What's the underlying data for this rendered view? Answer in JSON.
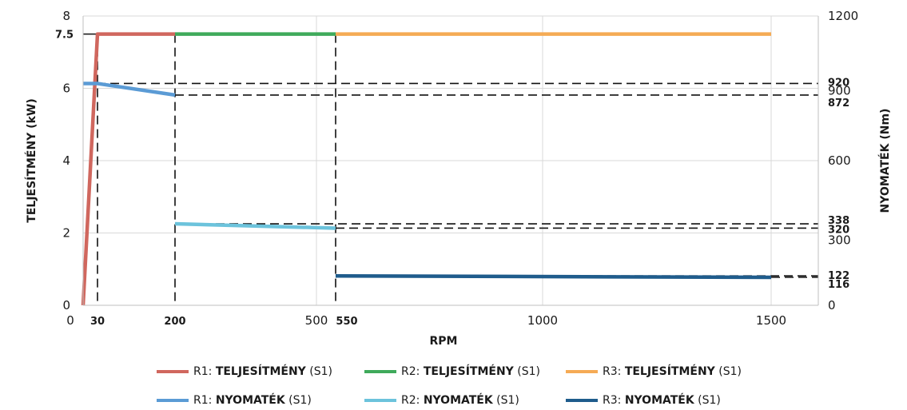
{
  "chart_data": {
    "type": "line",
    "xlabel": "RPM",
    "ylabel_left": "TELJESÍTMÉNY (kW)",
    "ylabel_right": "NYOMATÉK (Nm)",
    "x_ticks": [
      {
        "value": 0,
        "label": "0",
        "bold": false
      },
      {
        "value": 30,
        "label": "30",
        "bold": true
      },
      {
        "value": 200,
        "label": "200",
        "bold": true
      },
      {
        "value": 500,
        "label": "500",
        "bold": false
      },
      {
        "value": 550,
        "label": "550",
        "bold": true
      },
      {
        "value": 1000,
        "label": "1000",
        "bold": false
      },
      {
        "value": 1500,
        "label": "1500",
        "bold": false
      }
    ],
    "left_ticks": [
      {
        "value": 0,
        "label": "0",
        "bold": false
      },
      {
        "value": 2,
        "label": "2",
        "bold": false
      },
      {
        "value": 4,
        "label": "4",
        "bold": false
      },
      {
        "value": 6,
        "label": "6",
        "bold": false
      },
      {
        "value": 7.5,
        "label": "7.5",
        "bold": true
      },
      {
        "value": 8,
        "label": "8",
        "bold": false
      }
    ],
    "right_ticks": [
      {
        "value": 0,
        "label": "0",
        "bold": false
      },
      {
        "value": 116,
        "label": "116",
        "bold": true
      },
      {
        "value": 122,
        "label": "122",
        "bold": true
      },
      {
        "value": 300,
        "label": "300",
        "bold": false
      },
      {
        "value": 320,
        "label": "320",
        "bold": true
      },
      {
        "value": 338,
        "label": "338",
        "bold": true
      },
      {
        "value": 600,
        "label": "600",
        "bold": false
      },
      {
        "value": 872,
        "label": "872",
        "bold": true
      },
      {
        "value": 900,
        "label": "900",
        "bold": false
      },
      {
        "value": 920,
        "label": "920",
        "bold": true
      },
      {
        "value": 1200,
        "label": "1200",
        "bold": false
      }
    ],
    "series": [
      {
        "name": "R1: TELJESÍTMÉNY (S1)",
        "prefix": "R1: ",
        "bold": "TELJESÍTMÉNY",
        "suffix": " (S1)",
        "axis": "left",
        "color": "#D0675E",
        "x": [
          0,
          30,
          200
        ],
        "y": [
          0,
          7.5,
          7.5
        ]
      },
      {
        "name": "R2: TELJESÍTMÉNY (S1)",
        "prefix": "R2: ",
        "bold": "TELJESÍTMÉNY",
        "suffix": " (S1)",
        "axis": "left",
        "color": "#3FAA5B",
        "x": [
          200,
          550
        ],
        "y": [
          7.5,
          7.5
        ]
      },
      {
        "name": "R3: TELJESÍTMÉNY (S1)",
        "prefix": "R3: ",
        "bold": "TELJESÍTMÉNY",
        "suffix": " (S1)",
        "axis": "left",
        "color": "#F5AB55",
        "x": [
          550,
          1500
        ],
        "y": [
          7.5,
          7.5
        ]
      },
      {
        "name": "R1: NYOMATÉK (S1)",
        "prefix": "R1: ",
        "bold": "NYOMATÉK",
        "suffix": " (S1)",
        "axis": "right",
        "color": "#5B9BD5",
        "x": [
          0,
          30,
          200
        ],
        "y": [
          920,
          920,
          872
        ]
      },
      {
        "name": "R2: NYOMATÉK (S1)",
        "prefix": "R2: ",
        "bold": "NYOMATÉK",
        "suffix": " (S1)",
        "axis": "right",
        "color": "#6CC3DC",
        "x": [
          200,
          550
        ],
        "y": [
          338,
          320
        ]
      },
      {
        "name": "R3: NYOMATÉK (S1)",
        "prefix": "R3: ",
        "bold": "NYOMATÉK",
        "suffix": " (S1)",
        "axis": "right",
        "color": "#1F5C8C",
        "x": [
          550,
          1500
        ],
        "y": [
          122,
          116
        ]
      }
    ],
    "legend_position": "bottom",
    "grid": true
  }
}
